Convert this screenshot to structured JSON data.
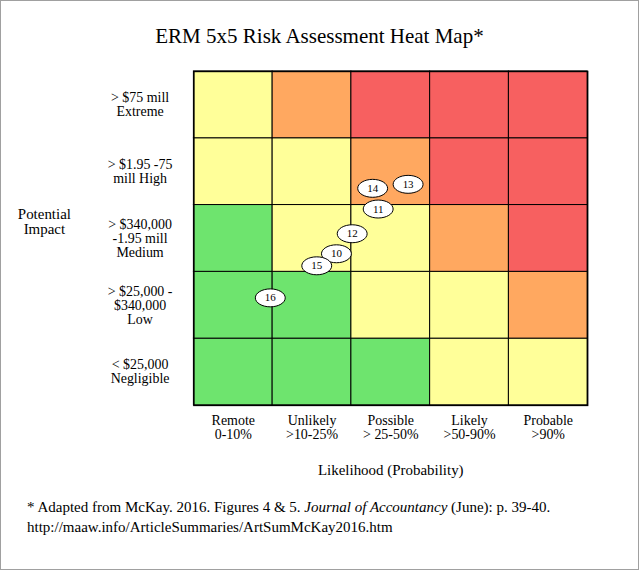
{
  "chart_data": {
    "type": "heatmap",
    "title": "ERM 5x5 Risk Assessment Heat Map*",
    "x_label": "Likelihood (Probability)",
    "y_label": "Potential\nImpact",
    "x_categories": [
      "Remote\n0-10%",
      "Unlikely\n>10-25%",
      "Possible\n> 25-50%",
      "Likely\n>50-90%",
      "Probable\n>90%"
    ],
    "y_categories": [
      "< $25,000\nNegligible",
      "> $25,000 -\n$340,000\nLow",
      "> $340,000\n-1.95 mill\nMedium",
      "> $1.95 -75\nmill High",
      "> $75 mill\nExtreme"
    ],
    "xlim": [
      0,
      5
    ],
    "ylim": [
      0,
      5
    ],
    "colors": [
      [
        "#6ee46e",
        "#6ee46e",
        "#6ee46e",
        "#ffff99",
        "#ffff99"
      ],
      [
        "#6ee46e",
        "#6ee46e",
        "#ffff99",
        "#ffff99",
        "#ffa860"
      ],
      [
        "#6ee46e",
        "#ffff99",
        "#ffff99",
        "#ffa860",
        "#f76060"
      ],
      [
        "#ffff99",
        "#ffff99",
        "#ffa860",
        "#f76060",
        "#f76060"
      ],
      [
        "#ffff99",
        "#ffa860",
        "#f76060",
        "#f76060",
        "#f76060"
      ]
    ],
    "points": {
      "labels": [
        "13",
        "14",
        "11",
        "12",
        "10",
        "15",
        "16"
      ],
      "x": [
        2.72,
        2.27,
        2.34,
        2.01,
        1.81,
        1.56,
        0.97
      ],
      "y": [
        3.31,
        3.25,
        2.94,
        2.57,
        2.27,
        2.09,
        1.61
      ]
    },
    "source": {
      "before": "* Adapted from McKay. 2016. Figures 4 & 5.",
      "journal": "Journal of Accountancy",
      "after": "(June): p. 39-40.",
      "url": "http://maaw.info/ArticleSummaries/ArtSumMcKay2016.htm"
    }
  }
}
